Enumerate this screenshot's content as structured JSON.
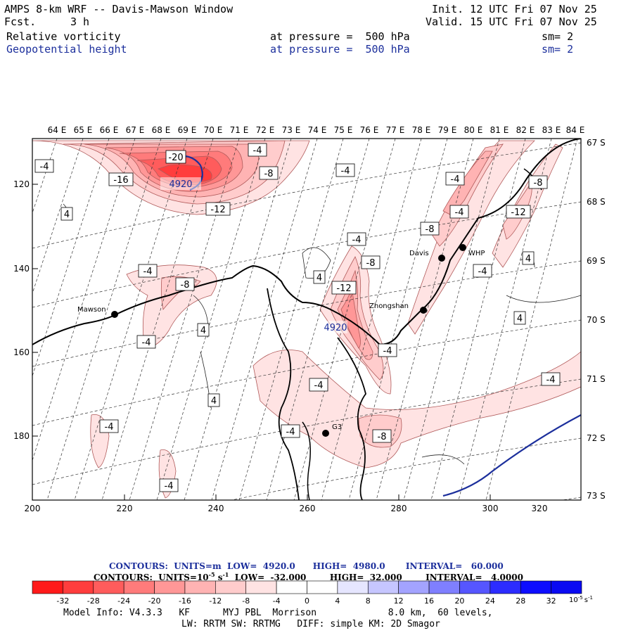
{
  "header": {
    "title": "AMPS 8-km WRF -- Davis-Mawson Window",
    "fcst_label": "Fcst.",
    "fcst_value": "3 h",
    "init": "Init. 12 UTC Fri 07 Nov 25",
    "valid": "Valid. 15 UTC Fri 07 Nov 25",
    "field1": {
      "name": "Relative vorticity",
      "level": "at pressure =  500 hPa",
      "sm": "sm= 2"
    },
    "field2": {
      "name": "Geopotential height",
      "level": "at pressure =  500 hPa",
      "sm": "sm= 2"
    }
  },
  "map": {
    "lon_labels": [
      "64 E",
      "65 E",
      "66 E",
      "67 E",
      "68 E",
      "69 E",
      "70 E",
      "71 E",
      "72 E",
      "73 E",
      "74 E",
      "75 E",
      "76 E",
      "77 E",
      "78 E",
      "79 E",
      "80 E",
      "81 E",
      "82 E",
      "83 E",
      "84 E"
    ],
    "lat_labels": [
      "67 S",
      "68 S",
      "69 S",
      "70 S",
      "71 S",
      "72 S",
      "73 S"
    ],
    "x_ticks": [
      "200",
      "220",
      "240",
      "260",
      "280",
      "300",
      "320"
    ],
    "y_ticks": [
      "120",
      "140",
      "160",
      "180"
    ],
    "stations": [
      {
        "name": "Mawson"
      },
      {
        "name": "Davis"
      },
      {
        "name": "WHP"
      },
      {
        "name": "Zhongshan"
      },
      {
        "name": "G3"
      }
    ],
    "contour_labels": {
      "n20": "-20",
      "n16": "-16",
      "n12a": "-12",
      "n12b": "-12",
      "n12c": "-12",
      "n8a": "-8",
      "n8b": "-8",
      "n8c": "-8",
      "n8d": "-8",
      "n8e": "-8",
      "n8f": "-8",
      "n4a": "-4",
      "n4b": "-4",
      "n4c": "-4",
      "n4d": "-4",
      "n4e": "-4",
      "n4f": "-4",
      "n4g": "-4",
      "n4h": "-4",
      "n4i": "-4",
      "n4j": "-4",
      "n4k": "-4",
      "n4l": "-4",
      "n4m": "-4",
      "n4n": "-4",
      "n4o": "-4",
      "p4a": "4",
      "p4b": "4",
      "p4c": "4",
      "p4d": "4",
      "p4e": "4",
      "p4f": "4",
      "h4920a": "4920",
      "h4920b": "4920"
    }
  },
  "contours": {
    "line1": {
      "label": "CONTOURS:  UNITS=m  LOW=  4920.0      HIGH=  4980.0       INTERVAL=   60.000"
    },
    "line2": {
      "label": "CONTOURS:  UNITS=10",
      "exp": "-5",
      "rest": " s",
      "rest_exp": "-1",
      "tail": "  LOW=  -32.000        HIGH=  32.000        INTERVAL=   4.0000"
    }
  },
  "colorbar": {
    "colors": [
      "#ff1a1a",
      "#ff3d3d",
      "#ff5c5c",
      "#ff7b7b",
      "#ff9797",
      "#ffb3b3",
      "#ffcccc",
      "#ffe3e3",
      "#ffffff",
      "#ffffff",
      "#e6e6ff",
      "#c6c6ff",
      "#a3a3ff",
      "#7f7fff",
      "#5656ff",
      "#2c2cff",
      "#0d0dff",
      "#0a0af2"
    ],
    "labels": [
      "-32",
      "-28",
      "-24",
      "-20",
      "-16",
      "-12",
      "-8",
      "-4",
      "0",
      "4",
      "8",
      "12",
      "16",
      "20",
      "24",
      "28",
      "32"
    ],
    "unit": "10",
    "unit_exp": "-5",
    "unit_tail": "s",
    "unit_tail_exp": "-1"
  },
  "footer": {
    "line1": "Model Info: V4.3.3   KF      MYJ PBL  Morrison             8.0 km,  60 levels,",
    "line2": "LW: RRTM SW: RRTMG   DIFF: simple KM: 2D Smagor"
  }
}
